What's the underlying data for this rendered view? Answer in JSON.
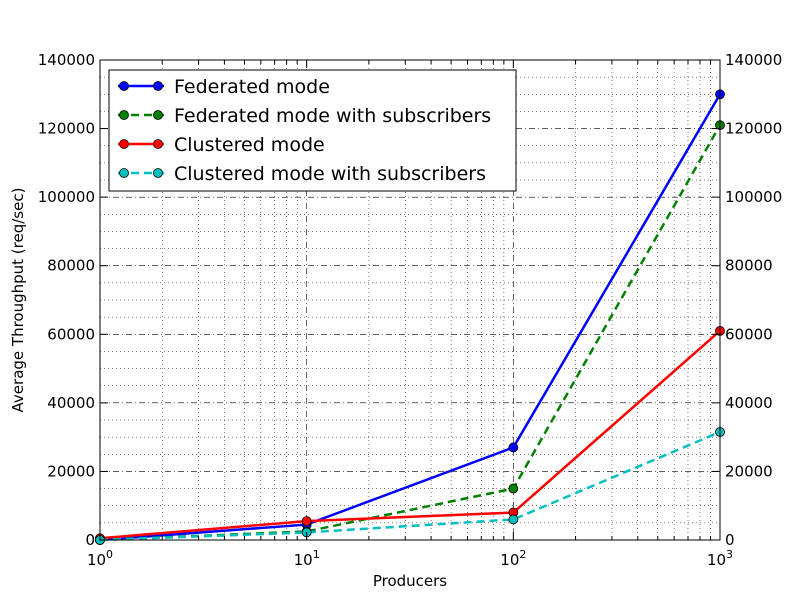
{
  "chart_data": {
    "type": "line",
    "title": "",
    "xlabel": "Producers",
    "ylabel": "Average Throughput (req/sec)",
    "xscale": "log",
    "x": [
      1,
      10,
      100,
      1000
    ],
    "xlim": [
      1,
      1000
    ],
    "ylim": [
      0,
      140000
    ],
    "grid": true,
    "legend_position": "top-left",
    "x_ticks": [
      {
        "value": 1,
        "base": "10",
        "exp": "0"
      },
      {
        "value": 10,
        "base": "10",
        "exp": "1"
      },
      {
        "value": 100,
        "base": "10",
        "exp": "2"
      },
      {
        "value": 1000,
        "base": "10",
        "exp": "3"
      }
    ],
    "y_ticks": [
      0,
      20000,
      40000,
      60000,
      80000,
      100000,
      120000,
      140000
    ],
    "series": [
      {
        "name": "Federated mode",
        "color": "#0000ff",
        "dashed": false,
        "values": [
          0,
          4500,
          27000,
          130000
        ]
      },
      {
        "name": "Federated mode with subscribers",
        "color": "#008000",
        "dashed": true,
        "values": [
          0,
          2500,
          15000,
          121000
        ]
      },
      {
        "name": "Clustered mode",
        "color": "#ff0000",
        "dashed": false,
        "values": [
          500,
          5500,
          8000,
          61000
        ]
      },
      {
        "name": "Clustered mode with subscribers",
        "color": "#00bfbf",
        "dashed": true,
        "values": [
          0,
          2200,
          6000,
          31500
        ]
      }
    ]
  }
}
